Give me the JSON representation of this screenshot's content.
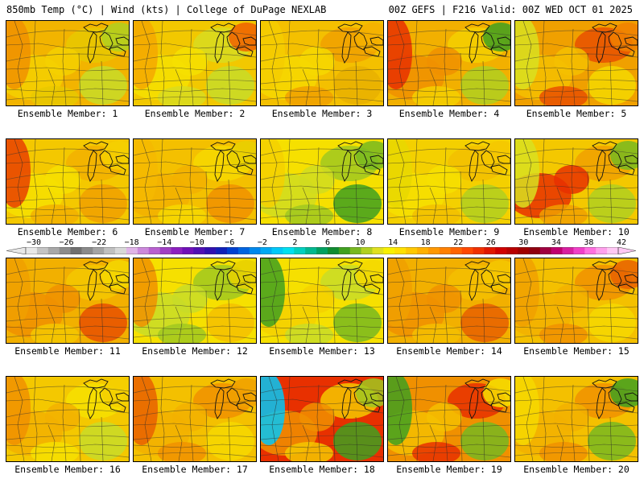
{
  "header": {
    "left_title": "850mb Temp (°C) | Wind (kts) | College of DuPage NEXLAB",
    "right_title": "00Z GEFS | F216 Valid: 00Z WED OCT 01 2025"
  },
  "colorbar": {
    "labels": [
      "−30",
      "−26",
      "−22",
      "−18",
      "−14",
      "−10",
      "−6",
      "−2",
      "2",
      "6",
      "10",
      "14",
      "18",
      "22",
      "26",
      "30",
      "34",
      "38",
      "42"
    ],
    "colors": [
      "#e8e8e8",
      "#c4c4c4",
      "#a8a8a8",
      "#8c8c8c",
      "#707070",
      "#8a8a8a",
      "#a4a4a4",
      "#c0c0c0",
      "#d8d8d8",
      "#e0b4e8",
      "#cc88dc",
      "#b860d0",
      "#a040c4",
      "#8c20c0",
      "#7010b8",
      "#5010b4",
      "#3010b0",
      "#1020b8",
      "#0040d0",
      "#0064e0",
      "#0088ec",
      "#00a8f4",
      "#00c8f8",
      "#00e0f0",
      "#00d0c0",
      "#00b890",
      "#00a060",
      "#108c30",
      "#40a020",
      "#78b820",
      "#b0d020",
      "#e0e020",
      "#f8f000",
      "#ffe000",
      "#ffc800",
      "#ffb000",
      "#ff9800",
      "#ff8000",
      "#ff6400",
      "#ff4800",
      "#f03000",
      "#e01800",
      "#d00000",
      "#b80000",
      "#a00000",
      "#900010",
      "#a00040",
      "#c00070",
      "#d820a0",
      "#f040c8",
      "#ff70e0",
      "#ffa0ec",
      "#ffc8f4"
    ]
  },
  "members": [
    {
      "label": "Ensemble Member: 1",
      "palette": [
        "#f2b400",
        "#f4d000",
        "#e8c800",
        "#c8dc28",
        "#f09000",
        "#b0d020"
      ]
    },
    {
      "label": "Ensemble Member: 2",
      "palette": [
        "#f2c800",
        "#f6e000",
        "#d8dc20",
        "#c8dc28",
        "#f4a800",
        "#f06000"
      ]
    },
    {
      "label": "Ensemble Member: 3",
      "palette": [
        "#f4c000",
        "#f6d800",
        "#f0a000",
        "#e8b000",
        "#f5cc00",
        "#f4b000"
      ]
    },
    {
      "label": "Ensemble Member: 4",
      "palette": [
        "#f2b000",
        "#f09000",
        "#f5d000",
        "#b0d020",
        "#e83000",
        "#40a020"
      ]
    },
    {
      "label": "Ensemble Member: 5",
      "palette": [
        "#f0a000",
        "#f4c000",
        "#e85000",
        "#f5d800",
        "#d8e020",
        "#f08000"
      ]
    },
    {
      "label": "Ensemble Member: 6",
      "palette": [
        "#f4c800",
        "#f6e000",
        "#f2b000",
        "#f0a000",
        "#e84000",
        "#f5d000"
      ]
    },
    {
      "label": "Ensemble Member: 7",
      "palette": [
        "#f4c000",
        "#f2b000",
        "#f6d800",
        "#f09000",
        "#f4b800",
        "#e8d000"
      ]
    },
    {
      "label": "Ensemble Member: 8",
      "palette": [
        "#f6e000",
        "#d0dc20",
        "#a0c820",
        "#40a020",
        "#f4d000",
        "#78b820"
      ]
    },
    {
      "label": "Ensemble Member: 9",
      "palette": [
        "#f4d000",
        "#f6e000",
        "#f2c000",
        "#b0d020",
        "#e8d800",
        "#f4c800"
      ]
    },
    {
      "label": "Ensemble Member: 10",
      "palette": [
        "#f4c800",
        "#e83000",
        "#f0a000",
        "#b0d020",
        "#d8e020",
        "#78b820"
      ]
    },
    {
      "label": "Ensemble Member: 11",
      "palette": [
        "#f2b000",
        "#f09000",
        "#f4c800",
        "#e85000",
        "#f0a000",
        "#f5d800"
      ]
    },
    {
      "label": "Ensemble Member: 12",
      "palette": [
        "#f6e000",
        "#c8dc28",
        "#a0c820",
        "#f4c000",
        "#f09000",
        "#e8d000"
      ]
    },
    {
      "label": "Ensemble Member: 13",
      "palette": [
        "#f6e000",
        "#f4d000",
        "#c8dc28",
        "#78b820",
        "#40a020",
        "#f5d800"
      ]
    },
    {
      "label": "Ensemble Member: 14",
      "palette": [
        "#f2b000",
        "#f09000",
        "#f4c000",
        "#e86000",
        "#f0a000",
        "#f5c800"
      ]
    },
    {
      "label": "Ensemble Member: 15",
      "palette": [
        "#f4c000",
        "#f2b000",
        "#f09000",
        "#f6d800",
        "#f0a000",
        "#e86000"
      ]
    },
    {
      "label": "Ensemble Member: 16",
      "palette": [
        "#f4c800",
        "#f2b000",
        "#f6e000",
        "#c8dc28",
        "#f09000",
        "#f4d000"
      ]
    },
    {
      "label": "Ensemble Member: 17",
      "palette": [
        "#f4c000",
        "#f2b000",
        "#f09000",
        "#f6d800",
        "#e86000",
        "#f0a000"
      ]
    },
    {
      "label": "Ensemble Member: 18",
      "palette": [
        "#e83000",
        "#f09000",
        "#f4c800",
        "#40a020",
        "#00c8f8",
        "#a0c820"
      ]
    },
    {
      "label": "Ensemble Member: 19",
      "palette": [
        "#f09000",
        "#f4c000",
        "#e83000",
        "#78b820",
        "#40a020",
        "#f6e000"
      ]
    },
    {
      "label": "Ensemble Member: 20",
      "palette": [
        "#f4c000",
        "#f2b000",
        "#f09000",
        "#78b820",
        "#f6d800",
        "#40a020"
      ]
    }
  ]
}
